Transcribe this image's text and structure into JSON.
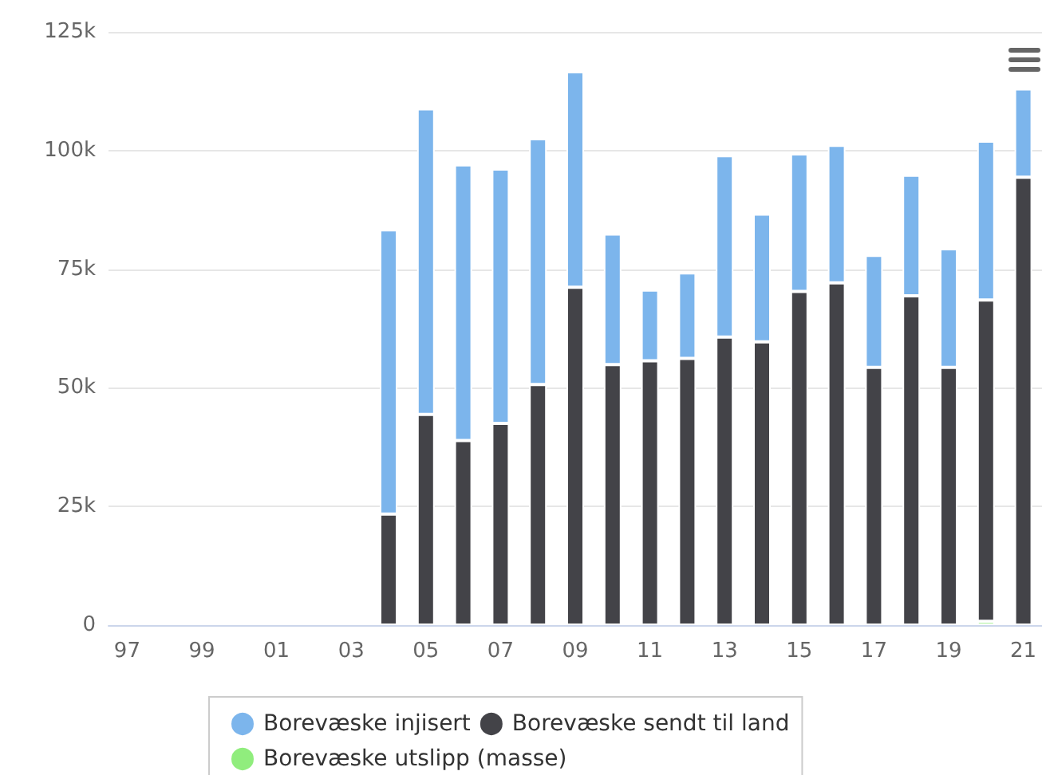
{
  "chart_data": {
    "type": "bar",
    "stacked": true,
    "categories": [
      "97",
      null,
      "99",
      null,
      "01",
      null,
      "03",
      null,
      "05",
      null,
      "07",
      null,
      "09",
      null,
      "11",
      null,
      "13",
      null,
      "15",
      null,
      "17",
      null,
      "19",
      null,
      "21"
    ],
    "series": [
      {
        "name": "Borevæske utslipp (masse)",
        "color": "#90ed7d",
        "values": [
          null,
          null,
          null,
          null,
          null,
          null,
          null,
          null,
          null,
          null,
          null,
          null,
          null,
          null,
          null,
          null,
          null,
          null,
          null,
          null,
          null,
          null,
          null,
          800,
          null
        ]
      },
      {
        "name": "Borevæske sendt til land",
        "color": "#434348",
        "values": [
          null,
          null,
          null,
          null,
          null,
          null,
          null,
          23400,
          44400,
          38900,
          42500,
          50700,
          71200,
          54900,
          55700,
          56200,
          60700,
          59700,
          70300,
          72100,
          54300,
          69400,
          54300,
          67700,
          94400
        ]
      },
      {
        "name": "Borevæske injisert",
        "color": "#7cb5ec",
        "values": [
          null,
          null,
          null,
          null,
          null,
          null,
          null,
          59900,
          64400,
          58100,
          53600,
          51800,
          45400,
          27500,
          14900,
          18000,
          38200,
          26900,
          29000,
          29000,
          23600,
          25400,
          25000,
          33500,
          18600
        ]
      }
    ],
    "ylim": [
      0,
      125000
    ],
    "yticks": [
      0,
      {
        "value": 25000,
        "label": "25k"
      },
      {
        "value": 50000,
        "label": "50k"
      },
      {
        "value": 75000,
        "label": "75k"
      },
      {
        "value": 100000,
        "label": "100k"
      },
      {
        "value": 125000,
        "label": "125k"
      }
    ],
    "grid": "y",
    "legend": "bottom"
  }
}
